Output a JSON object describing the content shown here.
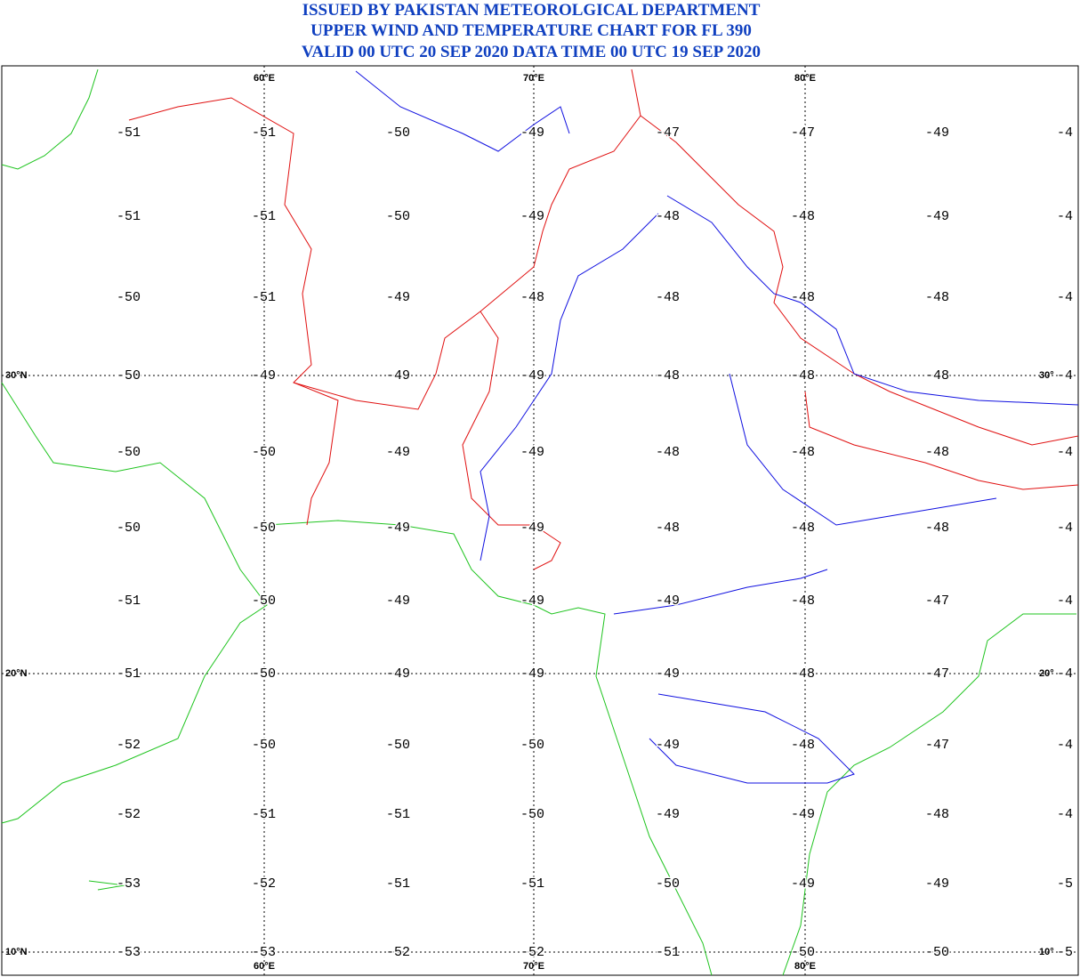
{
  "header": {
    "lines": [
      "ISSUED BY PAKISTAN METEOROLGICAL DEPARTMENT",
      "UPPER WIND AND TEMPERATURE CHART FOR FL 390",
      "VALID 00 UTC 20 SEP 2020 DATA TIME 00 UTC 19 SEP 2020"
    ]
  },
  "map": {
    "lon_labels_top": [
      "60°E",
      "70°E",
      "80°E"
    ],
    "lon_labels_bottom": [
      "60°E",
      "70°E",
      "80°E"
    ],
    "lat_labels_left": [
      "30°N",
      "20°N",
      "10°N"
    ],
    "lat_labels_right": [
      "30°",
      "20°",
      "10°"
    ],
    "temperatures": [
      [
        -51,
        -51,
        -50,
        -49,
        -47,
        -47,
        -49,
        -4
      ],
      [
        -51,
        -51,
        -50,
        -49,
        -48,
        -48,
        -49,
        -4
      ],
      [
        -50,
        -51,
        -49,
        -48,
        -48,
        -48,
        -48,
        -4
      ],
      [
        -50,
        -49,
        -49,
        -49,
        -48,
        -48,
        -48,
        -4
      ],
      [
        -50,
        -50,
        -49,
        -49,
        -48,
        -48,
        -48,
        -4
      ],
      [
        -50,
        -50,
        -49,
        -49,
        -48,
        -48,
        -48,
        -4
      ],
      [
        -51,
        -50,
        -49,
        -49,
        -49,
        -48,
        -47,
        -4
      ],
      [
        -51,
        -50,
        -49,
        -49,
        -49,
        -48,
        -47,
        -4
      ],
      [
        -52,
        -50,
        -50,
        -50,
        -49,
        -48,
        -47,
        -4
      ],
      [
        -52,
        -51,
        -51,
        -50,
        -49,
        -49,
        -48,
        -4
      ],
      [
        -53,
        -52,
        -51,
        -51,
        -50,
        -49,
        -49,
        -5
      ],
      [
        -53,
        -53,
        -52,
        -52,
        -51,
        -50,
        -50,
        -5
      ]
    ]
  }
}
